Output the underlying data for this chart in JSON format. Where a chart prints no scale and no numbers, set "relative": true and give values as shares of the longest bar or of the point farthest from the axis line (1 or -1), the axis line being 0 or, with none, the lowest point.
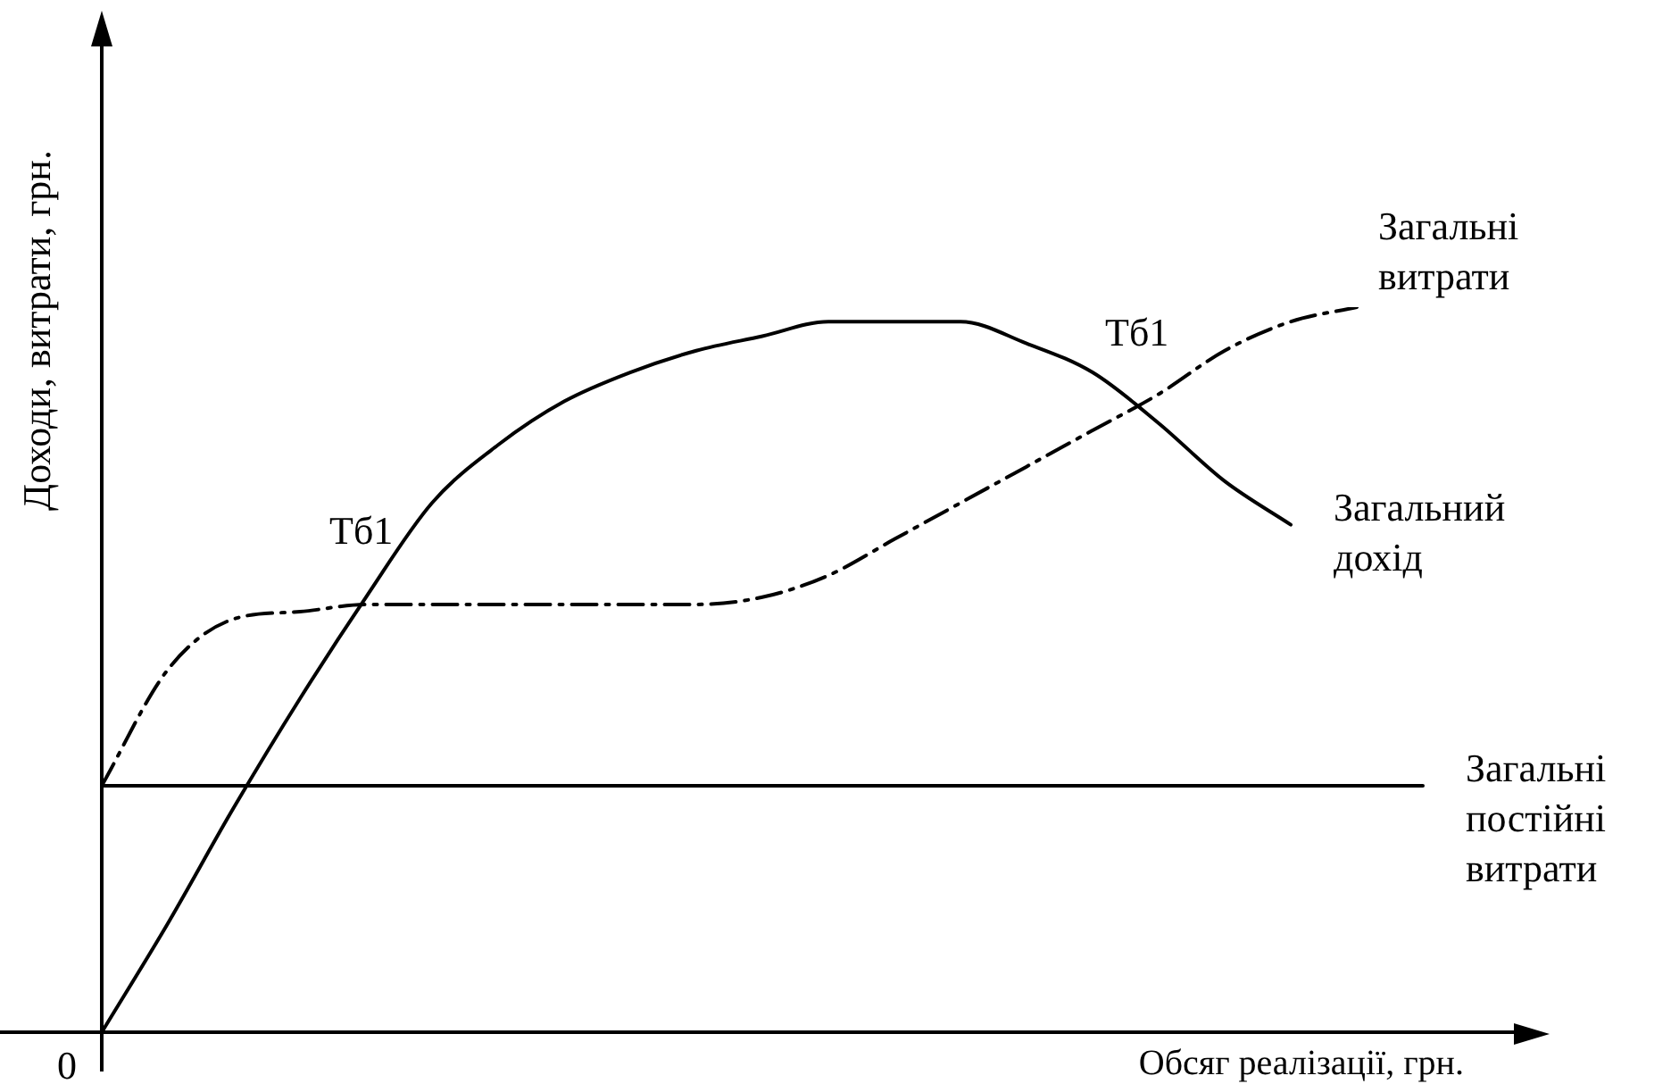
{
  "chart_data": {
    "type": "line",
    "relative": true,
    "xlabel": "Обсяг реалізації, грн.",
    "ylabel": "Доходи, витрати, грн.",
    "legend": false,
    "categories": [
      null,
      null,
      null,
      null,
      null,
      null,
      null,
      null,
      null,
      null,
      null,
      null,
      null,
      null,
      null,
      null,
      null,
      null,
      null,
      null,
      null
    ],
    "series": [
      {
        "name": "Загальні витрати",
        "color": "#000000",
        "line_style": "dashed",
        "values": [
          0.34,
          0.5,
          0.57,
          0.58,
          0.59,
          0.59,
          0.59,
          0.59,
          0.59,
          0.59,
          0.6,
          0.63,
          0.68,
          0.73,
          0.78,
          0.83,
          0.88,
          0.94,
          0.98,
          1.0,
          null
        ]
      },
      {
        "name": "Загальний дохід",
        "color": "#000000",
        "line_style": "solid",
        "values": [
          0,
          0.15,
          0.31,
          0.46,
          0.6,
          0.73,
          0.81,
          0.87,
          0.91,
          0.94,
          0.96,
          0.98,
          0.98,
          0.98,
          0.95,
          0.91,
          0.84,
          0.76,
          0.7,
          null,
          null
        ]
      },
      {
        "name": "Загальні постійні витрати",
        "color": "#000000",
        "line_style": "solid",
        "values": [
          0.34,
          0.34,
          0.34,
          0.34,
          0.34,
          0.34,
          0.34,
          0.34,
          0.34,
          0.34,
          0.34,
          0.34,
          0.34,
          0.34,
          0.34,
          0.34,
          0.34,
          0.34,
          0.34,
          0.34,
          0.34
        ]
      }
    ],
    "annotations": [
      "Тб1",
      "Тб1",
      "0"
    ]
  }
}
